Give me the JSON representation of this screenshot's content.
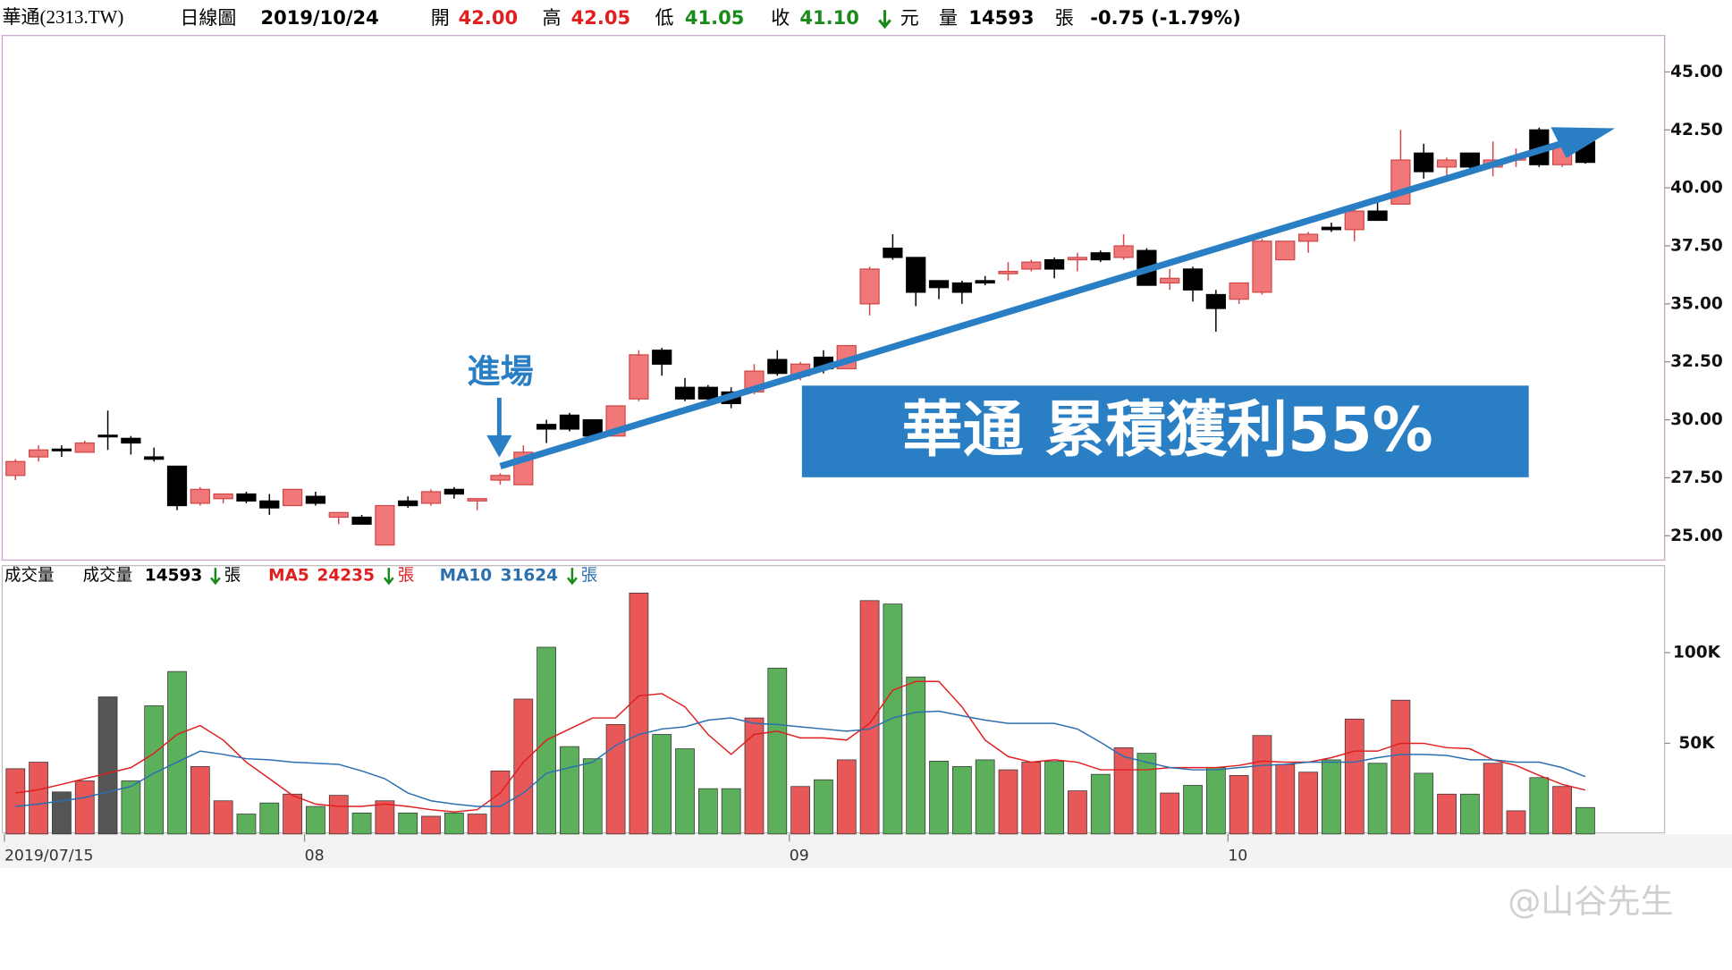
{
  "header": {
    "name": "華通(2313.TW)",
    "period": "日線圖",
    "date": "2019/10/24",
    "open_label": "開",
    "open": "42.00",
    "high_label": "高",
    "high": "42.05",
    "low_label": "低",
    "low": "41.05",
    "close_label": "收",
    "close": "41.10",
    "currency": "元",
    "volume_label": "量",
    "volume": "14593",
    "volume_unit": "張",
    "change": "-0.75 (-1.79%)"
  },
  "watermark": "@山谷先生",
  "chart_data": [
    {
      "type": "candlestick",
      "entry_label": "進場",
      "banner": "華通 累積獲利55%",
      "up_color": "#f07878",
      "up_border": "#d04848",
      "down_color": "#000000",
      "open": [
        27.6,
        28.4,
        28.7,
        28.6,
        29.3,
        29.2,
        28.4,
        28.0,
        26.4,
        26.6,
        26.8,
        26.5,
        26.3,
        26.7,
        25.8,
        25.8,
        24.6,
        26.5,
        26.4,
        27.0,
        26.5,
        27.4,
        27.2,
        29.8,
        30.2,
        30.0,
        29.3,
        30.9,
        33.0,
        31.4,
        31.4,
        31.2,
        31.2,
        32.6,
        31.9,
        32.7,
        32.2,
        35.0,
        37.4,
        37.0,
        36.0,
        35.9,
        36.0,
        36.3,
        36.5,
        36.9,
        36.9,
        37.2,
        37.0,
        37.3,
        35.9,
        36.5,
        35.4,
        35.2,
        35.5,
        36.9,
        37.7,
        38.3,
        38.2,
        39.0,
        39.3,
        41.5,
        40.9,
        41.5,
        40.9,
        41.2,
        42.5,
        41.0,
        42.0
      ],
      "high": [
        28.3,
        28.9,
        28.9,
        29.1,
        30.4,
        29.3,
        28.8,
        28.0,
        27.1,
        26.8,
        26.9,
        26.8,
        27.0,
        26.9,
        26.0,
        25.9,
        26.3,
        26.7,
        27.0,
        27.1,
        26.6,
        27.7,
        28.9,
        30.0,
        30.3,
        30.0,
        30.6,
        33.0,
        33.1,
        31.8,
        31.5,
        31.4,
        32.4,
        33.0,
        32.5,
        33.0,
        33.2,
        36.6,
        38.0,
        37.0,
        36.0,
        36.0,
        36.2,
        36.8,
        36.9,
        37.0,
        37.2,
        37.3,
        38.0,
        37.4,
        36.5,
        36.6,
        35.6,
        35.9,
        37.8,
        37.7,
        38.1,
        38.5,
        39.1,
        39.5,
        42.5,
        41.9,
        41.3,
        41.5,
        42.0,
        41.7,
        42.6,
        41.9,
        42.05
      ],
      "low": [
        27.4,
        28.2,
        28.4,
        28.6,
        28.7,
        28.5,
        28.2,
        26.1,
        26.3,
        26.4,
        26.4,
        25.9,
        26.3,
        26.3,
        25.5,
        25.5,
        24.6,
        26.2,
        26.3,
        26.6,
        26.1,
        27.2,
        27.2,
        29.0,
        29.5,
        29.2,
        29.3,
        30.8,
        31.9,
        30.8,
        30.8,
        30.5,
        31.1,
        31.9,
        31.7,
        32.0,
        32.2,
        34.5,
        36.9,
        34.9,
        35.2,
        35.0,
        35.8,
        36.0,
        36.4,
        36.1,
        36.4,
        36.8,
        36.9,
        35.8,
        35.6,
        35.1,
        33.8,
        35.0,
        35.4,
        36.9,
        37.2,
        38.1,
        37.7,
        38.6,
        39.3,
        40.4,
        40.5,
        40.8,
        40.5,
        40.9,
        40.9,
        40.9,
        41.05
      ],
      "close": [
        28.2,
        28.7,
        28.7,
        29.0,
        29.3,
        29.0,
        28.3,
        26.3,
        27.0,
        26.8,
        26.5,
        26.2,
        27.0,
        26.4,
        26.0,
        25.5,
        26.3,
        26.3,
        26.9,
        26.8,
        26.6,
        27.6,
        28.6,
        29.6,
        29.6,
        29.3,
        30.6,
        32.8,
        32.4,
        30.9,
        30.9,
        30.7,
        32.1,
        32.0,
        32.4,
        32.2,
        33.2,
        36.5,
        37.0,
        35.5,
        35.7,
        35.5,
        35.9,
        36.4,
        36.8,
        36.5,
        37.0,
        36.9,
        37.5,
        35.8,
        36.1,
        35.6,
        34.8,
        35.9,
        37.7,
        37.7,
        38.0,
        38.2,
        39.0,
        38.6,
        41.2,
        40.7,
        41.2,
        40.9,
        41.2,
        41.3,
        41.0,
        41.8,
        41.1
      ],
      "ylim": [
        23.95,
        46.57
      ],
      "yticks": [
        {
          "value": 25,
          "label": "25.00"
        },
        {
          "value": 27.5,
          "label": "27.50"
        },
        {
          "value": 30,
          "label": "30.00"
        },
        {
          "value": 32.5,
          "label": "32.50"
        },
        {
          "value": 35,
          "label": "35.00"
        },
        {
          "value": 37.5,
          "label": "37.50"
        },
        {
          "value": 40,
          "label": "40.00"
        },
        {
          "value": 42.5,
          "label": "42.50"
        },
        {
          "value": 45,
          "label": "45.00"
        }
      ]
    },
    {
      "type": "bar",
      "title": "成交量",
      "unit": "張",
      "up_color": "#e85858",
      "down_color": "#5cb05c",
      "flat_color": "#555555",
      "categories": [
        "2019/07/15",
        null,
        null,
        null,
        null,
        null,
        null,
        null,
        null,
        null,
        null,
        null,
        null,
        "08",
        null,
        null,
        null,
        null,
        null,
        null,
        null,
        null,
        null,
        null,
        null,
        null,
        null,
        null,
        null,
        null,
        null,
        null,
        null,
        null,
        "09",
        null,
        null,
        null,
        null,
        null,
        null,
        null,
        null,
        null,
        null,
        null,
        null,
        null,
        null,
        null,
        null,
        null,
        null,
        "10",
        null,
        null,
        null,
        null,
        null,
        null,
        null,
        null,
        null,
        null,
        null,
        null,
        null,
        null,
        null
      ],
      "series": [
        {
          "name": "成交量",
          "color": "#000000",
          "values": [
            36000,
            39600,
            23200,
            29300,
            75600,
            29300,
            70700,
            89600,
            37200,
            18300,
            11000,
            17100,
            22000,
            15200,
            21300,
            11600,
            18300,
            11600,
            9800,
            11600,
            11000,
            34800,
            74400,
            103000,
            48200,
            41500,
            60400,
            132900,
            54900,
            47000,
            25000,
            25000,
            64000,
            91500,
            26200,
            29900,
            40900,
            128700,
            126800,
            86600,
            40200,
            37200,
            40900,
            35400,
            39600,
            40000,
            23800,
            32900,
            47600,
            44500,
            22600,
            26800,
            36600,
            32300,
            54300,
            38400,
            34100,
            40900,
            63400,
            39000,
            73800,
            33500,
            22000,
            22000,
            39000,
            12800,
            31100,
            26200,
            14593
          ]
        },
        {
          "name": "MA5",
          "color": "#e02020",
          "values": [
            22600,
            24400,
            27400,
            30500,
            33500,
            36600,
            44500,
            54900,
            59800,
            51800,
            39600,
            30500,
            21300,
            16500,
            15200,
            15200,
            16500,
            15200,
            13400,
            12200,
            13400,
            22600,
            39600,
            51800,
            57900,
            64000,
            64000,
            76200,
            77400,
            70100,
            54900,
            43900,
            54900,
            56700,
            53000,
            53000,
            51800,
            61000,
            79300,
            84100,
            84100,
            70100,
            51800,
            42700,
            39600,
            40900,
            39600,
            35400,
            35400,
            35400,
            36600,
            36600,
            36600,
            37800,
            40200,
            39600,
            39600,
            42100,
            45700,
            45700,
            50000,
            50000,
            47600,
            47000,
            40900,
            37800,
            32300,
            27400,
            24235
          ]
        },
        {
          "name": "MA10",
          "color": "#2a6fb0",
          "values": [
            15200,
            16500,
            18300,
            20100,
            23200,
            26200,
            33500,
            39600,
            45700,
            43900,
            41500,
            40900,
            39600,
            39000,
            38400,
            34800,
            30500,
            22600,
            18300,
            16500,
            15200,
            15200,
            22600,
            33500,
            36600,
            39600,
            48800,
            54900,
            57900,
            59100,
            62800,
            64000,
            61000,
            60400,
            59100,
            57900,
            56700,
            57900,
            64000,
            67100,
            67700,
            65200,
            62800,
            61000,
            61000,
            61000,
            57900,
            50600,
            42700,
            39600,
            36600,
            35400,
            35400,
            36600,
            37800,
            38400,
            39600,
            39600,
            39600,
            42100,
            43900,
            43900,
            43300,
            40900,
            40900,
            39600,
            39600,
            36600,
            31624
          ]
        }
      ],
      "ylim": [
        0,
        148000
      ],
      "yticks": [
        {
          "value": 50000,
          "label": "50K"
        },
        {
          "value": 100000,
          "label": "100K"
        }
      ]
    }
  ]
}
